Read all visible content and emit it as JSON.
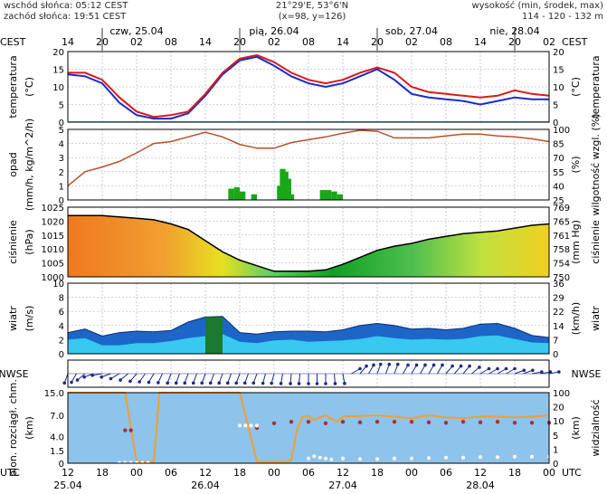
{
  "header": {
    "sunrise": "wschód słońca: 05:12 CEST",
    "sunset": "zachód słońca: 19:51 CEST",
    "coords": "21°29'E, 53°6'N",
    "grid": "(x=98, y=126)",
    "height_title": "wysokość (min, środek, max)",
    "height_values": "114 - 120 - 132 m"
  },
  "timeline": {
    "tz_left": "CEST",
    "tz_right": "CEST",
    "utc_left": "UTC",
    "utc_right": "UTC",
    "days_top": [
      "czw, 25.04",
      "pią, 26.04",
      "sob, 27.04",
      "nie, 28.04"
    ],
    "hours_top": [
      "14",
      "20",
      "02",
      "08",
      "14",
      "20",
      "02",
      "08",
      "14",
      "20",
      "02",
      "08",
      "14",
      "20",
      "02"
    ],
    "hours_bottom": [
      "12",
      "18",
      "00",
      "06",
      "12",
      "18",
      "00",
      "06",
      "12",
      "18",
      "00",
      "06",
      "12",
      "18",
      "00"
    ],
    "dates_bottom": [
      "25.04",
      "26.04",
      "27.04",
      "28.04"
    ]
  },
  "colors": {
    "night_band": "#dcdcdc",
    "panel_bg": "#ffffff",
    "temp_line": "#d81b1b",
    "dew_line": "#1a2acc",
    "humidity_line": "#b8502a",
    "precip_bar": "#18a818",
    "pressure_line": "#000000",
    "wind_area": "#1d66c8",
    "cloud_bg": "#8ec3ec",
    "vis_line": "#f0a030",
    "cloud_dots": "#a83232"
  },
  "chart_data": [
    {
      "type": "line",
      "name": "temperature",
      "ylabel_left": "temperatura (°C)",
      "ylabel_right": "temperatura (°C)",
      "ylim": [
        0,
        20
      ],
      "ticks": [
        "0",
        "5",
        "10",
        "15",
        "20"
      ],
      "x_hours": [
        0,
        3,
        6,
        9,
        12,
        15,
        18,
        21,
        24,
        27,
        30,
        33,
        36,
        39,
        42,
        45,
        48,
        51,
        54,
        57,
        60,
        63,
        66,
        69,
        72,
        75,
        78,
        81,
        84
      ],
      "series": [
        {
          "values": [
            14,
            14,
            12,
            7,
            3,
            1.5,
            2,
            3,
            8,
            14,
            18,
            19,
            17,
            14,
            12,
            11,
            12,
            14,
            15.5,
            14,
            10,
            8.5,
            8,
            7.5,
            7,
            7.5,
            9,
            8,
            7.5
          ]
        },
        {
          "values": [
            13.5,
            13,
            11,
            5.5,
            2,
            1,
            1,
            2.5,
            7.5,
            13.5,
            17.5,
            18.5,
            16,
            13,
            11,
            10,
            11,
            13,
            15,
            12,
            8,
            7,
            6.5,
            6,
            5,
            6,
            7,
            6.5,
            6.5
          ]
        }
      ]
    },
    {
      "type": "bar",
      "name": "precipitation",
      "ylabel_left": "opad (mm/h, kg/m^2/h)",
      "ylabel_right": "wilgotność wzgl. (%)",
      "ylim": [
        0,
        5
      ],
      "ticks_left": [
        "0",
        "1",
        "2",
        "3",
        "4",
        "5"
      ],
      "ticks_right": [
        "25",
        "40",
        "55",
        "70",
        "85",
        "100"
      ],
      "humidity_hours": [
        0,
        3,
        6,
        9,
        12,
        15,
        18,
        21,
        24,
        27,
        30,
        33,
        36,
        39,
        42,
        45,
        48,
        51,
        54,
        57,
        60,
        63,
        66,
        69,
        72,
        75,
        78,
        81,
        84
      ],
      "humidity": [
        40,
        55,
        60,
        66,
        75,
        85,
        87,
        92,
        97,
        92,
        84,
        80,
        80,
        86,
        89,
        92,
        96,
        99,
        98,
        91,
        91,
        91,
        93,
        95,
        95,
        93,
        92,
        90,
        87
      ],
      "precip_hours": [
        28.5,
        29.5,
        30.5,
        32.5,
        37,
        37.5,
        38,
        38.5,
        39,
        44.5,
        45.5,
        46.5,
        47.5
      ],
      "precip": [
        0.8,
        0.9,
        0.6,
        0.4,
        1.0,
        2.2,
        2.0,
        1.5,
        0.4,
        0.7,
        0.7,
        0.6,
        0.4
      ]
    },
    {
      "type": "area",
      "name": "pressure",
      "ylabel_left": "ciśnienie (hPa)",
      "ylabel_right": "ciśnienie (mm Hg)",
      "ylim": [
        1000,
        1025
      ],
      "ticks_left": [
        "1000",
        "1005",
        "1010",
        "1015",
        "1020",
        "1025"
      ],
      "ticks_right": [
        "750",
        "754",
        "758",
        "761",
        "765",
        "769"
      ],
      "x_hours": [
        0,
        3,
        6,
        9,
        12,
        15,
        18,
        21,
        24,
        27,
        30,
        33,
        36,
        39,
        42,
        45,
        48,
        51,
        54,
        57,
        60,
        63,
        66,
        69,
        72,
        75,
        78,
        81,
        84
      ],
      "values": [
        1022,
        1022,
        1022,
        1021.5,
        1021,
        1020.5,
        1019,
        1017,
        1013,
        1009,
        1006,
        1004,
        1002,
        1002,
        1002,
        1002.5,
        1004.5,
        1007,
        1009.5,
        1011,
        1012,
        1013.5,
        1014.5,
        1015.5,
        1016,
        1016.5,
        1017.5,
        1018.5,
        1019
      ]
    },
    {
      "type": "area",
      "name": "wind",
      "ylabel_left": "wiatr (m/s)",
      "ylabel_right": "wiatr (km/h)",
      "ylim": [
        0,
        10
      ],
      "ticks_left": [
        "0",
        "2",
        "4",
        "6",
        "8",
        "10"
      ],
      "ticks_right": [
        "0",
        "7",
        "14",
        "22",
        "29",
        "36"
      ],
      "x_hours": [
        0,
        3,
        6,
        9,
        12,
        15,
        18,
        21,
        24,
        27,
        30,
        33,
        36,
        39,
        42,
        45,
        48,
        51,
        54,
        57,
        60,
        63,
        66,
        69,
        72,
        75,
        78,
        81,
        84
      ],
      "speed": [
        3,
        3.5,
        2.5,
        3,
        3.2,
        3.1,
        3.3,
        4.5,
        5.2,
        5.3,
        3,
        2.8,
        3.1,
        3.2,
        3.2,
        3.1,
        3.4,
        4,
        4.3,
        4,
        3.5,
        3.6,
        3.4,
        3.6,
        4.2,
        4.3,
        3.6,
        2.6,
        2.3
      ],
      "gust": [
        2,
        2.2,
        1.2,
        1.2,
        1.5,
        1.5,
        1.8,
        2.2,
        2.5,
        2.8,
        1.7,
        1.5,
        1.9,
        2,
        1.7,
        1.8,
        1.9,
        2.1,
        2.5,
        2.2,
        2,
        2.1,
        2,
        2.1,
        2.5,
        2.6,
        2.1,
        1.6,
        1.5
      ]
    },
    {
      "type": "scatter",
      "name": "wind-direction",
      "label_left": "NWSE",
      "label_right": "NWSE",
      "x_hours": [
        0,
        1.5,
        3,
        4.5,
        6,
        7.5,
        9,
        10.5,
        12,
        13.5,
        15,
        16.5,
        18,
        19.5,
        21,
        22.5,
        24,
        25.5,
        27,
        28.5,
        30,
        31.5,
        33,
        34.5,
        36,
        37.5,
        39,
        40.5,
        42,
        43.5,
        45,
        46.5,
        48,
        49.5,
        51,
        52.5,
        54,
        55.5,
        57,
        58.5,
        60,
        61.5,
        63,
        64.5,
        66,
        67.5,
        69,
        70.5,
        72,
        73.5,
        75,
        76.5,
        78,
        79.5,
        81,
        82.5,
        84
      ],
      "direction_deg": [
        200,
        210,
        230,
        250,
        260,
        250,
        240,
        230,
        220,
        215,
        210,
        205,
        200,
        200,
        200,
        200,
        200,
        200,
        200,
        200,
        200,
        200,
        200,
        195,
        195,
        190,
        185,
        185,
        180,
        180,
        180,
        175,
        170,
        60,
        40,
        30,
        20,
        20,
        20,
        30,
        30,
        30,
        30,
        30,
        40,
        40,
        40,
        50,
        60,
        60,
        60,
        60,
        70,
        70,
        80,
        80,
        80
      ]
    },
    {
      "type": "line",
      "name": "clouds-visibility",
      "ylabel_left": "pion. rozciągł. chm. (km)",
      "ylabel_right": "widzialność (km)",
      "ylim": [
        0,
        15
      ],
      "ticks_left": [
        "0",
        "1.5",
        "4.0",
        "7.0",
        "15.0"
      ],
      "ticks_right": [
        "0",
        "1",
        "5",
        "10",
        "20",
        "100"
      ],
      "vis_hours": [
        0,
        6,
        9,
        10,
        12,
        14,
        15,
        16,
        18,
        21,
        24,
        27,
        30,
        33,
        36,
        38,
        39,
        40,
        41,
        42,
        43,
        45,
        47,
        48,
        51,
        54,
        57,
        60,
        63,
        66,
        69,
        72,
        75,
        78,
        81,
        84
      ],
      "visibility": [
        100,
        100,
        100,
        100,
        0.1,
        0.1,
        0.1,
        100,
        100,
        100,
        100,
        100,
        100,
        0.1,
        0.1,
        0.1,
        0.2,
        8,
        20,
        21,
        16,
        22,
        14,
        20,
        21,
        22,
        20,
        18,
        22,
        19,
        18,
        20,
        20,
        19,
        20,
        22
      ],
      "cloud_hours": [
        10,
        11,
        33,
        36,
        39,
        42,
        45,
        48,
        51,
        54,
        57,
        60,
        63,
        66,
        69,
        72,
        75,
        78,
        81,
        84
      ],
      "cloud_top_km": [
        7,
        7,
        7.5,
        8.5,
        8.8,
        8.8,
        8.5,
        8.8,
        8.7,
        8.8,
        8.8,
        8.8,
        8.7,
        8.6,
        8.8,
        8.7,
        8.8,
        8.6,
        8.6,
        8.6
      ],
      "vis_dots_hours": [
        9,
        10,
        11,
        12,
        13,
        14,
        30,
        31,
        32,
        33,
        42,
        43,
        44,
        45,
        46,
        48,
        51,
        54,
        57,
        60,
        63,
        66,
        69,
        72,
        75,
        78,
        81,
        84
      ],
      "vis_dots": [
        0.1,
        0.1,
        0.1,
        0.1,
        0.1,
        0.1,
        8,
        8,
        8,
        8,
        1,
        1.5,
        1.2,
        1,
        0.8,
        1,
        0.9,
        0.9,
        1,
        1,
        1.1,
        1.2,
        1.2,
        1.3,
        1.3,
        1.4,
        1.4,
        1.4
      ]
    }
  ]
}
